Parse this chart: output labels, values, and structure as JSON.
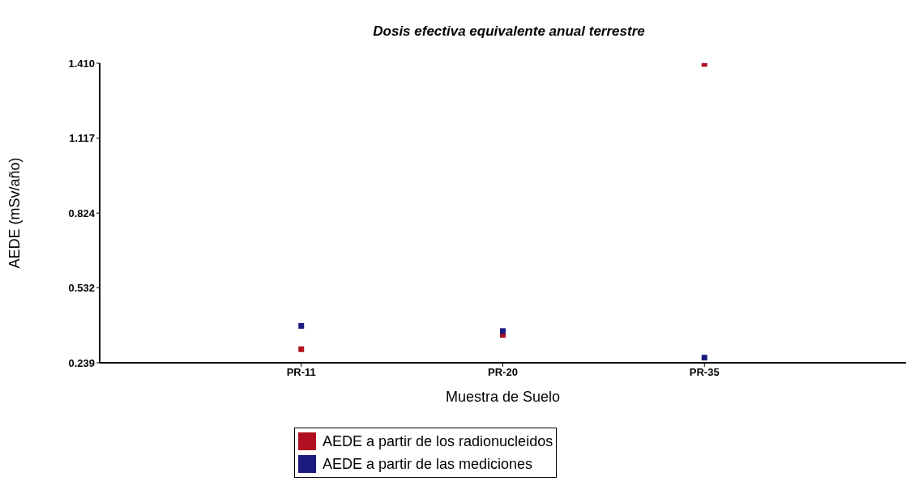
{
  "chart_data": {
    "type": "scatter",
    "title": "Dosis efectiva equivalente anual terrestre",
    "xlabel": "Muestra de Suelo",
    "ylabel": "AEDE (mSv/año)",
    "categories": [
      "PR-11",
      "PR-20",
      "PR-35"
    ],
    "series": [
      {
        "name": "AEDE a partir de los radionucleidos",
        "color": "#b01020",
        "values": [
          0.292,
          0.348,
          1.407
        ]
      },
      {
        "name": "AEDE a partir de las mediciones",
        "color": "#1a1a80",
        "values": [
          0.383,
          0.363,
          0.259
        ]
      }
    ],
    "ylim": [
      0.239,
      1.41
    ],
    "yticks": [
      0.239,
      0.532,
      0.824,
      1.117,
      {
        "value": 1.41,
        "label": "1.410"
      }
    ],
    "legend": "bottom",
    "marker": "square"
  }
}
